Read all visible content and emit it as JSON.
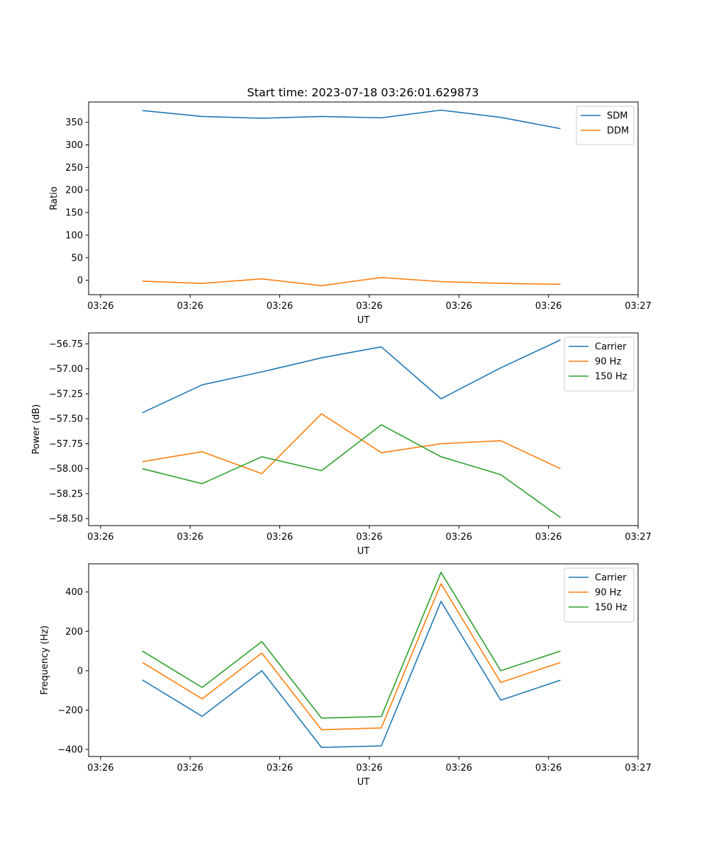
{
  "figure": {
    "title": "Start time: 2023-07-18 03:26:01.629873"
  },
  "chart_data": [
    {
      "type": "line",
      "title": "Start time: 2023-07-18 03:26:01.629873",
      "xlabel": "UT",
      "ylabel": "Ratio",
      "xlim": [
        -0.9,
        8.3
      ],
      "ylim": [
        -32,
        395
      ],
      "x_ticks": [
        {
          "value": -0.7,
          "label": "03:26"
        },
        {
          "value": 0.8,
          "label": "03:26"
        },
        {
          "value": 2.3,
          "label": "03:26"
        },
        {
          "value": 3.8,
          "label": "03:26"
        },
        {
          "value": 5.3,
          "label": "03:26"
        },
        {
          "value": 6.8,
          "label": "03:26"
        },
        {
          "value": 8.3,
          "label": "03:27"
        }
      ],
      "y_ticks": [
        0,
        50,
        100,
        150,
        200,
        250,
        300,
        350
      ],
      "y_tick_labels": [
        "0",
        "50",
        "100",
        "150",
        "200",
        "250",
        "300",
        "350"
      ],
      "x": [
        0,
        1,
        2,
        3,
        4,
        5,
        6,
        7
      ],
      "series": [
        {
          "name": "SDM",
          "color": "#1f77b4",
          "values": [
            376,
            363,
            359,
            363,
            360,
            377,
            361,
            336
          ]
        },
        {
          "name": "DDM",
          "color": "#ff7f0e",
          "values": [
            -2,
            -7,
            3,
            -12,
            6,
            -3,
            -7,
            -9
          ]
        }
      ],
      "legend": "top-right",
      "grid": false
    },
    {
      "type": "line",
      "title": "",
      "xlabel": "UT",
      "ylabel": "Power (dB)",
      "xlim": [
        -0.9,
        8.3
      ],
      "ylim": [
        -58.57,
        -56.64
      ],
      "x_ticks": [
        {
          "value": -0.7,
          "label": "03:26"
        },
        {
          "value": 0.8,
          "label": "03:26"
        },
        {
          "value": 2.3,
          "label": "03:26"
        },
        {
          "value": 3.8,
          "label": "03:26"
        },
        {
          "value": 5.3,
          "label": "03:26"
        },
        {
          "value": 6.8,
          "label": "03:26"
        },
        {
          "value": 8.3,
          "label": "03:27"
        }
      ],
      "y_ticks": [
        -58.5,
        -58.25,
        -58.0,
        -57.75,
        -57.5,
        -57.25,
        -57.0,
        -56.75
      ],
      "y_tick_labels": [
        "−58.50",
        "−58.25",
        "−58.00",
        "−57.75",
        "−57.50",
        "−57.25",
        "−57.00",
        "−56.75"
      ],
      "x": [
        0,
        1,
        2,
        3,
        4,
        5,
        6,
        7
      ],
      "series": [
        {
          "name": "Carrier",
          "color": "#1f77b4",
          "values": [
            -57.44,
            -57.16,
            -57.03,
            -56.89,
            -56.78,
            -57.3,
            -56.99,
            -56.71
          ]
        },
        {
          "name": "90 Hz",
          "color": "#ff7f0e",
          "values": [
            -57.93,
            -57.83,
            -58.05,
            -57.45,
            -57.84,
            -57.75,
            -57.72,
            -58.0
          ]
        },
        {
          "name": "150 Hz",
          "color": "#2ca02c",
          "values": [
            -58.0,
            -58.15,
            -57.88,
            -58.02,
            -57.56,
            -57.88,
            -58.06,
            -58.49
          ]
        }
      ],
      "legend": "top-right",
      "grid": false
    },
    {
      "type": "line",
      "title": "",
      "xlabel": "UT",
      "ylabel": "Frequency (Hz)",
      "xlim": [
        -0.9,
        8.3
      ],
      "ylim": [
        -436,
        543
      ],
      "x_ticks": [
        {
          "value": -0.7,
          "label": "03:26"
        },
        {
          "value": 0.8,
          "label": "03:26"
        },
        {
          "value": 2.3,
          "label": "03:26"
        },
        {
          "value": 3.8,
          "label": "03:26"
        },
        {
          "value": 5.3,
          "label": "03:26"
        },
        {
          "value": 6.8,
          "label": "03:26"
        },
        {
          "value": 8.3,
          "label": "03:27"
        }
      ],
      "y_ticks": [
        -400,
        -200,
        0,
        200,
        400
      ],
      "y_tick_labels": [
        "−400",
        "−200",
        "0",
        "200",
        "400"
      ],
      "x": [
        0,
        1,
        2,
        3,
        4,
        5,
        6,
        7
      ],
      "series": [
        {
          "name": "Carrier",
          "color": "#1f77b4",
          "values": [
            -47,
            -232,
            0,
            -390,
            -382,
            352,
            -150,
            -48
          ]
        },
        {
          "name": "90 Hz",
          "color": "#ff7f0e",
          "values": [
            42,
            -143,
            90,
            -300,
            -291,
            442,
            -60,
            42
          ]
        },
        {
          "name": "150 Hz",
          "color": "#2ca02c",
          "values": [
            100,
            -85,
            148,
            -241,
            -233,
            500,
            0,
            100
          ]
        }
      ],
      "legend": "top-right",
      "grid": false
    }
  ]
}
